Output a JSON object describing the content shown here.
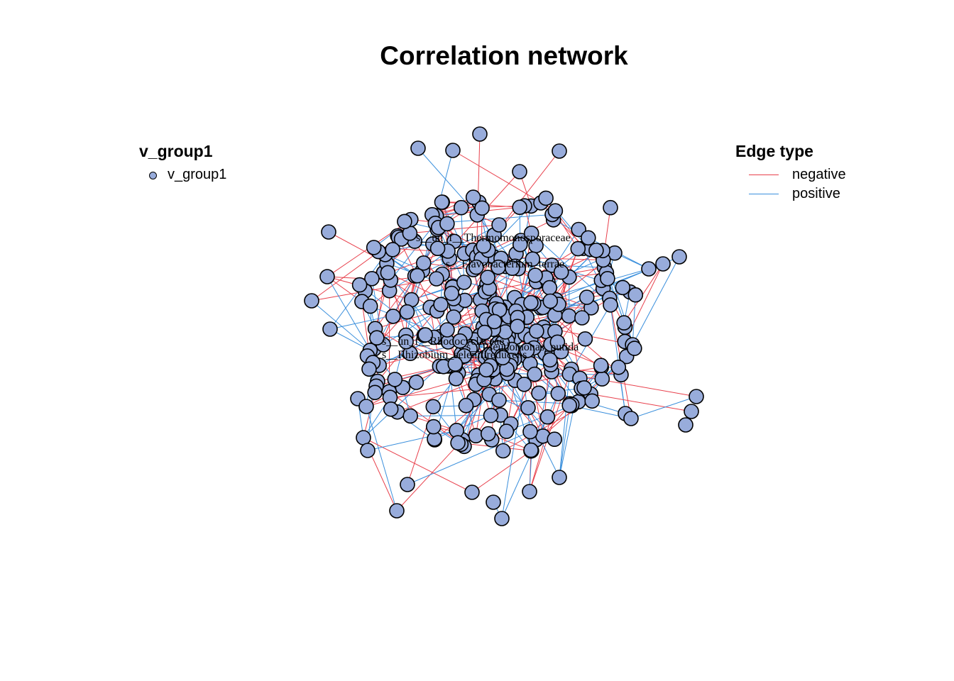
{
  "title": "Correlation network",
  "colors": {
    "node_fill": "#98acdb",
    "node_stroke": "#000000",
    "negative_edge": "#e8404c",
    "positive_edge": "#3a8fdc"
  },
  "legend_nodes": {
    "title": "v_group1",
    "items": [
      {
        "label": "v_group1"
      }
    ]
  },
  "legend_edges": {
    "title": "Edge type",
    "items": [
      {
        "label": "negative",
        "color": "#e8404c"
      },
      {
        "label": "positive",
        "color": "#3a8fdc"
      }
    ]
  },
  "node_labels": [
    "s__un_f__Thermomonosporaceae",
    "s__Flavobacterium_terrae",
    "s__un_f__Rhodocyclaceae",
    "s__Pseudomonas_putida",
    "s__Rhizobium_selenitireducens"
  ]
}
